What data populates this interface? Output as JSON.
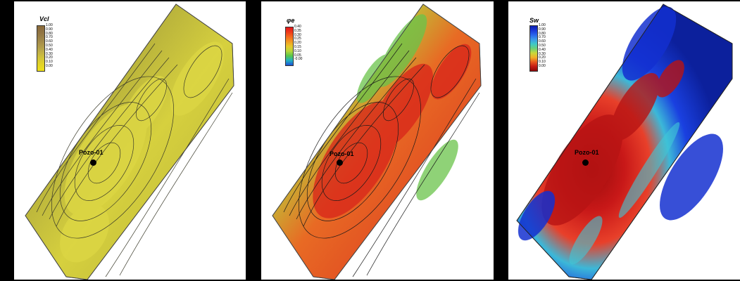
{
  "panels": [
    {
      "variable_label": "Vcl",
      "colorbar_ticks": [
        "1.00",
        "0.90",
        "0.80",
        "0.70",
        "0.60",
        "0.50",
        "0.40",
        "0.30",
        "0.20",
        "0.10",
        "0.00"
      ],
      "colorbar_colors": [
        "#8a6a38",
        "#8e7040",
        "#957a45",
        "#9f8648",
        "#aa934a",
        "#b5a24a",
        "#c3b244",
        "#d0c23a",
        "#dccd2c",
        "#e6d722",
        "#eddf1a"
      ],
      "well_label": "Pozo-01",
      "map_colors": {
        "base": "#c8c33a",
        "light": "#dbd540",
        "dark": "#8f8d3a",
        "darker": "#6e6a3a"
      }
    },
    {
      "variable_label": "φe",
      "colorbar_ticks": [
        "0.40",
        "0.35",
        "0.30",
        "0.25",
        "0.20",
        "0.15",
        "0.10",
        "0.05",
        "-0.00"
      ],
      "colorbar_colors": [
        "#e0141a",
        "#ef3a1a",
        "#f56a1e",
        "#f29a22",
        "#e8c92a",
        "#b8d63a",
        "#58c74a",
        "#22b0c4",
        "#1c4fd6"
      ],
      "well_label": "Pozo-01",
      "map_colors": {
        "base": "#e05a28",
        "light": "#f09a30",
        "dark": "#c42a1a",
        "green": "#8ac63c",
        "teal": "#3cb8a0"
      }
    },
    {
      "variable_label": "Sw",
      "colorbar_ticks": [
        "1.00",
        "0.90",
        "0.80",
        "0.70",
        "0.60",
        "0.50",
        "0.40",
        "0.30",
        "0.20",
        "0.10",
        "0.00"
      ],
      "colorbar_colors": [
        "#0b1fb0",
        "#1a38d8",
        "#2a66ec",
        "#3c9ae8",
        "#3ec8c8",
        "#6ad07a",
        "#c8d83a",
        "#f0b028",
        "#e8581e",
        "#c41a14",
        "#8a0808"
      ],
      "well_label": "Pozo-01",
      "map_colors": {
        "base": "#1536d8",
        "dark": "#0a1c9c",
        "red": "#c81818",
        "darkred": "#8a0a0a",
        "cyan": "#38c0d0",
        "yellow": "#e8d030"
      }
    }
  ]
}
